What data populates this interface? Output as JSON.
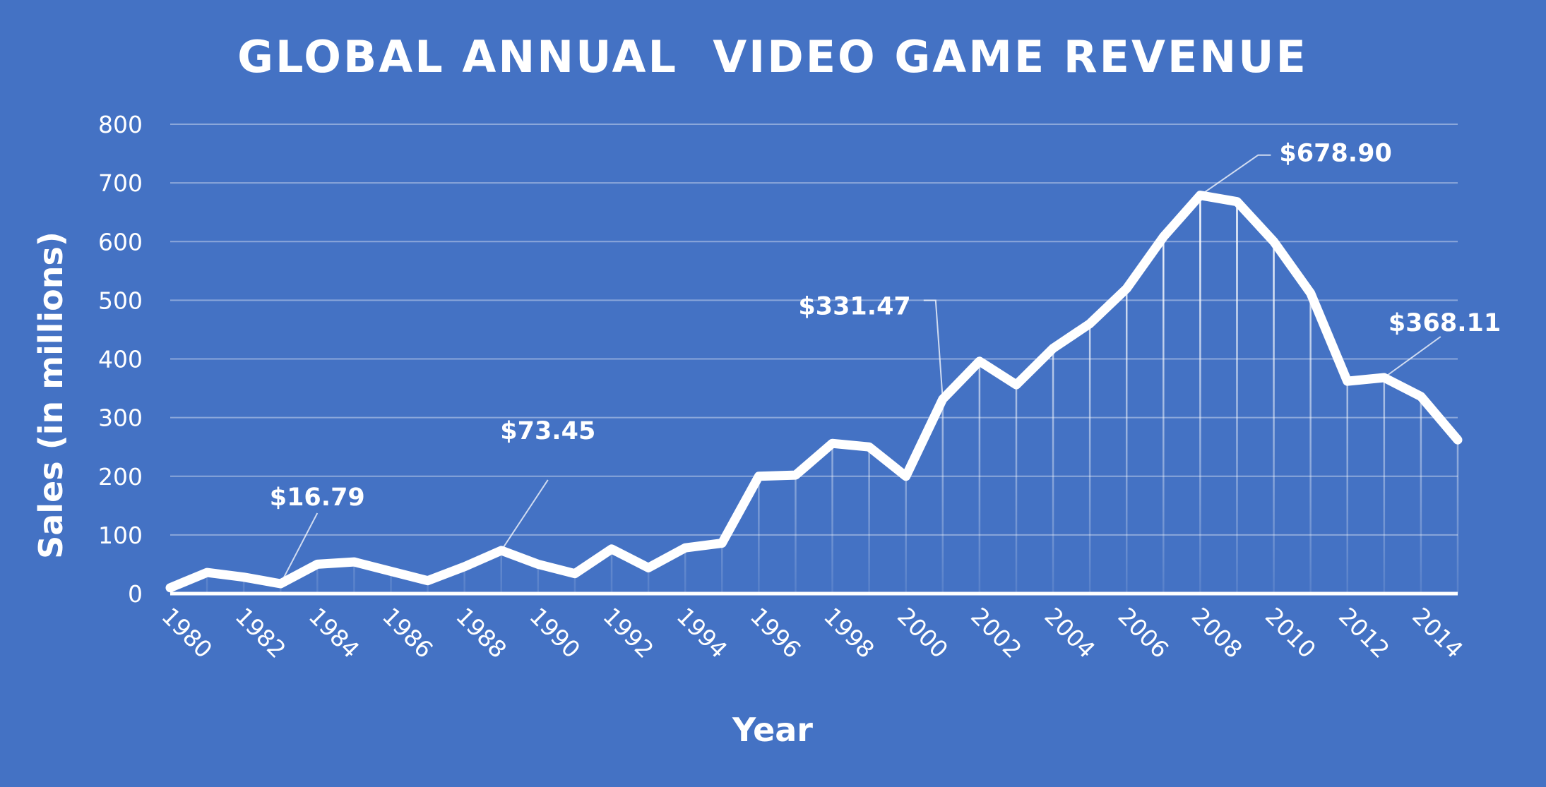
{
  "chart_data": {
    "type": "line",
    "title": "GLOBAL ANNUAL  VIDEO GAME REVENUE",
    "xlabel": "Year",
    "ylabel": "Sales (in millions)",
    "x": [
      1980,
      1981,
      1982,
      1983,
      1984,
      1985,
      1986,
      1987,
      1988,
      1989,
      1990,
      1991,
      1992,
      1993,
      1994,
      1995,
      1996,
      1997,
      1998,
      1999,
      2000,
      2001,
      2002,
      2003,
      2004,
      2005,
      2006,
      2007,
      2008,
      2009,
      2010,
      2011,
      2012,
      2013,
      2014,
      2015
    ],
    "series": [
      {
        "values": [
          10,
          36,
          28,
          16.79,
          50,
          54,
          38,
          22,
          46,
          73.45,
          50,
          34,
          76,
          44,
          78,
          86,
          200,
          202,
          256,
          250,
          200,
          331.47,
          396,
          356,
          418,
          460,
          520,
          608,
          678.9,
          668,
          600,
          512,
          362,
          368.11,
          336,
          262
        ]
      }
    ],
    "x_tick_labels": [
      "1980",
      "1982",
      "1984",
      "1986",
      "1988",
      "1990",
      "1992",
      "1994",
      "1996",
      "1998",
      "2000",
      "2002",
      "2004",
      "2006",
      "2008",
      "2010",
      "2012",
      "2014"
    ],
    "y_tick_labels": [
      "0",
      "100",
      "200",
      "300",
      "400",
      "500",
      "600",
      "700",
      "800"
    ],
    "ylim": [
      0,
      800
    ],
    "grid": true,
    "legend": "none",
    "annotations": [
      {
        "x": 1983,
        "y": 16.79,
        "text": "$16.79"
      },
      {
        "x": 1989,
        "y": 73.45,
        "text": "$73.45"
      },
      {
        "x": 2001,
        "y": 331.47,
        "text": "$331.47"
      },
      {
        "x": 2008,
        "y": 678.9,
        "text": "$678.90"
      },
      {
        "x": 2013,
        "y": 368.11,
        "text": "$368.11"
      }
    ],
    "colors": {
      "background": "#4472c4",
      "line": "#ffffff"
    }
  }
}
